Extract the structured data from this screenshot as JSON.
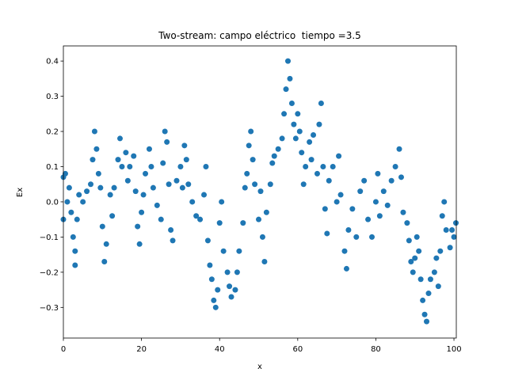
{
  "chart_data": {
    "type": "scatter",
    "title": "Two-stream: campo eléctrico  tiempo =3.5",
    "xlabel": "x",
    "ylabel": "Ex",
    "xlim": [
      0,
      100.6
    ],
    "ylim": [
      -0.387,
      0.443
    ],
    "xticks": [
      0,
      20,
      40,
      60,
      80,
      100
    ],
    "yticks": [
      {
        "value": -0.3,
        "label": "−0.3"
      },
      {
        "value": -0.2,
        "label": "−0.2"
      },
      {
        "value": -0.1,
        "label": "−0.1"
      },
      {
        "value": 0,
        "label": "0.0"
      },
      0.1,
      0.2,
      0.3,
      0.4
    ],
    "series": [
      {
        "color": "#1f77b4",
        "x": [
          0,
          0,
          0.5,
          1,
          1.5,
          2,
          2.5,
          3,
          3,
          3.5,
          4,
          5,
          6,
          7,
          7.5,
          8,
          8.5,
          9,
          9.5,
          10,
          10.5,
          11,
          12,
          12.5,
          13,
          14,
          14.5,
          15,
          16,
          16.5,
          17,
          18,
          18.5,
          19,
          19.5,
          20,
          20.5,
          21,
          22,
          22.5,
          23,
          24,
          25,
          25.5,
          26,
          26.5,
          27,
          27.5,
          28,
          29,
          30,
          30.5,
          31,
          31.5,
          32,
          33,
          34,
          35,
          36,
          36.5,
          37,
          37.5,
          38,
          38.5,
          39,
          39.5,
          40,
          40.5,
          41,
          42,
          42.5,
          43,
          44,
          44.5,
          45,
          46,
          46.5,
          47,
          47.5,
          48,
          48.5,
          49,
          50,
          50.5,
          51,
          51.5,
          52,
          53,
          53.5,
          54,
          55,
          56,
          56.5,
          57,
          57.5,
          58,
          58.5,
          59,
          59.5,
          60,
          60.5,
          61,
          61.5,
          62,
          63,
          63.5,
          64,
          65,
          65.5,
          66,
          66.5,
          67,
          67.5,
          68,
          69,
          70,
          70.5,
          71,
          72,
          72.5,
          73,
          74,
          75,
          76,
          77,
          78,
          79,
          80,
          80.5,
          81,
          82,
          83,
          84,
          85,
          86,
          86.5,
          87,
          88,
          88.5,
          89,
          89.5,
          90,
          90.5,
          91,
          91.5,
          92,
          92.5,
          93,
          93.5,
          94,
          95,
          95.5,
          96,
          96.5,
          97,
          97.5,
          98,
          99,
          99.5,
          100,
          100.5
        ],
        "values": [
          0.07,
          -0.05,
          0.08,
          0,
          0.04,
          -0.03,
          -0.1,
          -0.18,
          -0.14,
          -0.05,
          0.02,
          0,
          0.03,
          0.05,
          0.12,
          0.2,
          0.15,
          0.08,
          0.04,
          -0.07,
          -0.17,
          -0.12,
          0.02,
          -0.04,
          0.04,
          0.12,
          0.18,
          0.1,
          0.14,
          0.06,
          0.1,
          0.13,
          0.03,
          -0.07,
          -0.12,
          -0.03,
          0.02,
          0.08,
          0.15,
          0.1,
          0.04,
          -0.01,
          -0.05,
          0.11,
          0.2,
          0.17,
          0.05,
          -0.08,
          -0.11,
          0.06,
          0.1,
          0.04,
          0.16,
          0.12,
          0.05,
          0,
          -0.04,
          -0.05,
          0.02,
          0.1,
          -0.11,
          -0.18,
          -0.22,
          -0.28,
          -0.3,
          -0.25,
          -0.06,
          0,
          -0.14,
          -0.2,
          -0.24,
          -0.27,
          -0.25,
          -0.2,
          -0.14,
          -0.06,
          0.04,
          0.08,
          0.16,
          0.2,
          0.12,
          0.05,
          -0.05,
          0.03,
          -0.1,
          -0.17,
          -0.03,
          0.05,
          0.11,
          0.13,
          0.15,
          0.18,
          0.25,
          0.32,
          0.4,
          0.35,
          0.28,
          0.22,
          0.18,
          0.25,
          0.2,
          0.14,
          0.05,
          0.1,
          0.17,
          0.12,
          0.19,
          0.08,
          0.22,
          0.28,
          0.1,
          -0.02,
          -0.09,
          0.06,
          0.1,
          0,
          0.13,
          0.02,
          -0.14,
          -0.19,
          -0.08,
          -0.02,
          -0.1,
          0.03,
          0.06,
          -0.05,
          -0.1,
          0,
          0.08,
          -0.04,
          0.03,
          -0.01,
          0.06,
          0.1,
          0.15,
          0.07,
          -0.03,
          -0.06,
          -0.11,
          -0.17,
          -0.2,
          -0.16,
          -0.1,
          -0.14,
          -0.22,
          -0.28,
          -0.32,
          -0.34,
          -0.26,
          -0.22,
          -0.2,
          -0.16,
          -0.24,
          -0.14,
          -0.04,
          0,
          -0.08,
          -0.13,
          -0.08,
          -0.1,
          -0.06
        ]
      }
    ]
  }
}
